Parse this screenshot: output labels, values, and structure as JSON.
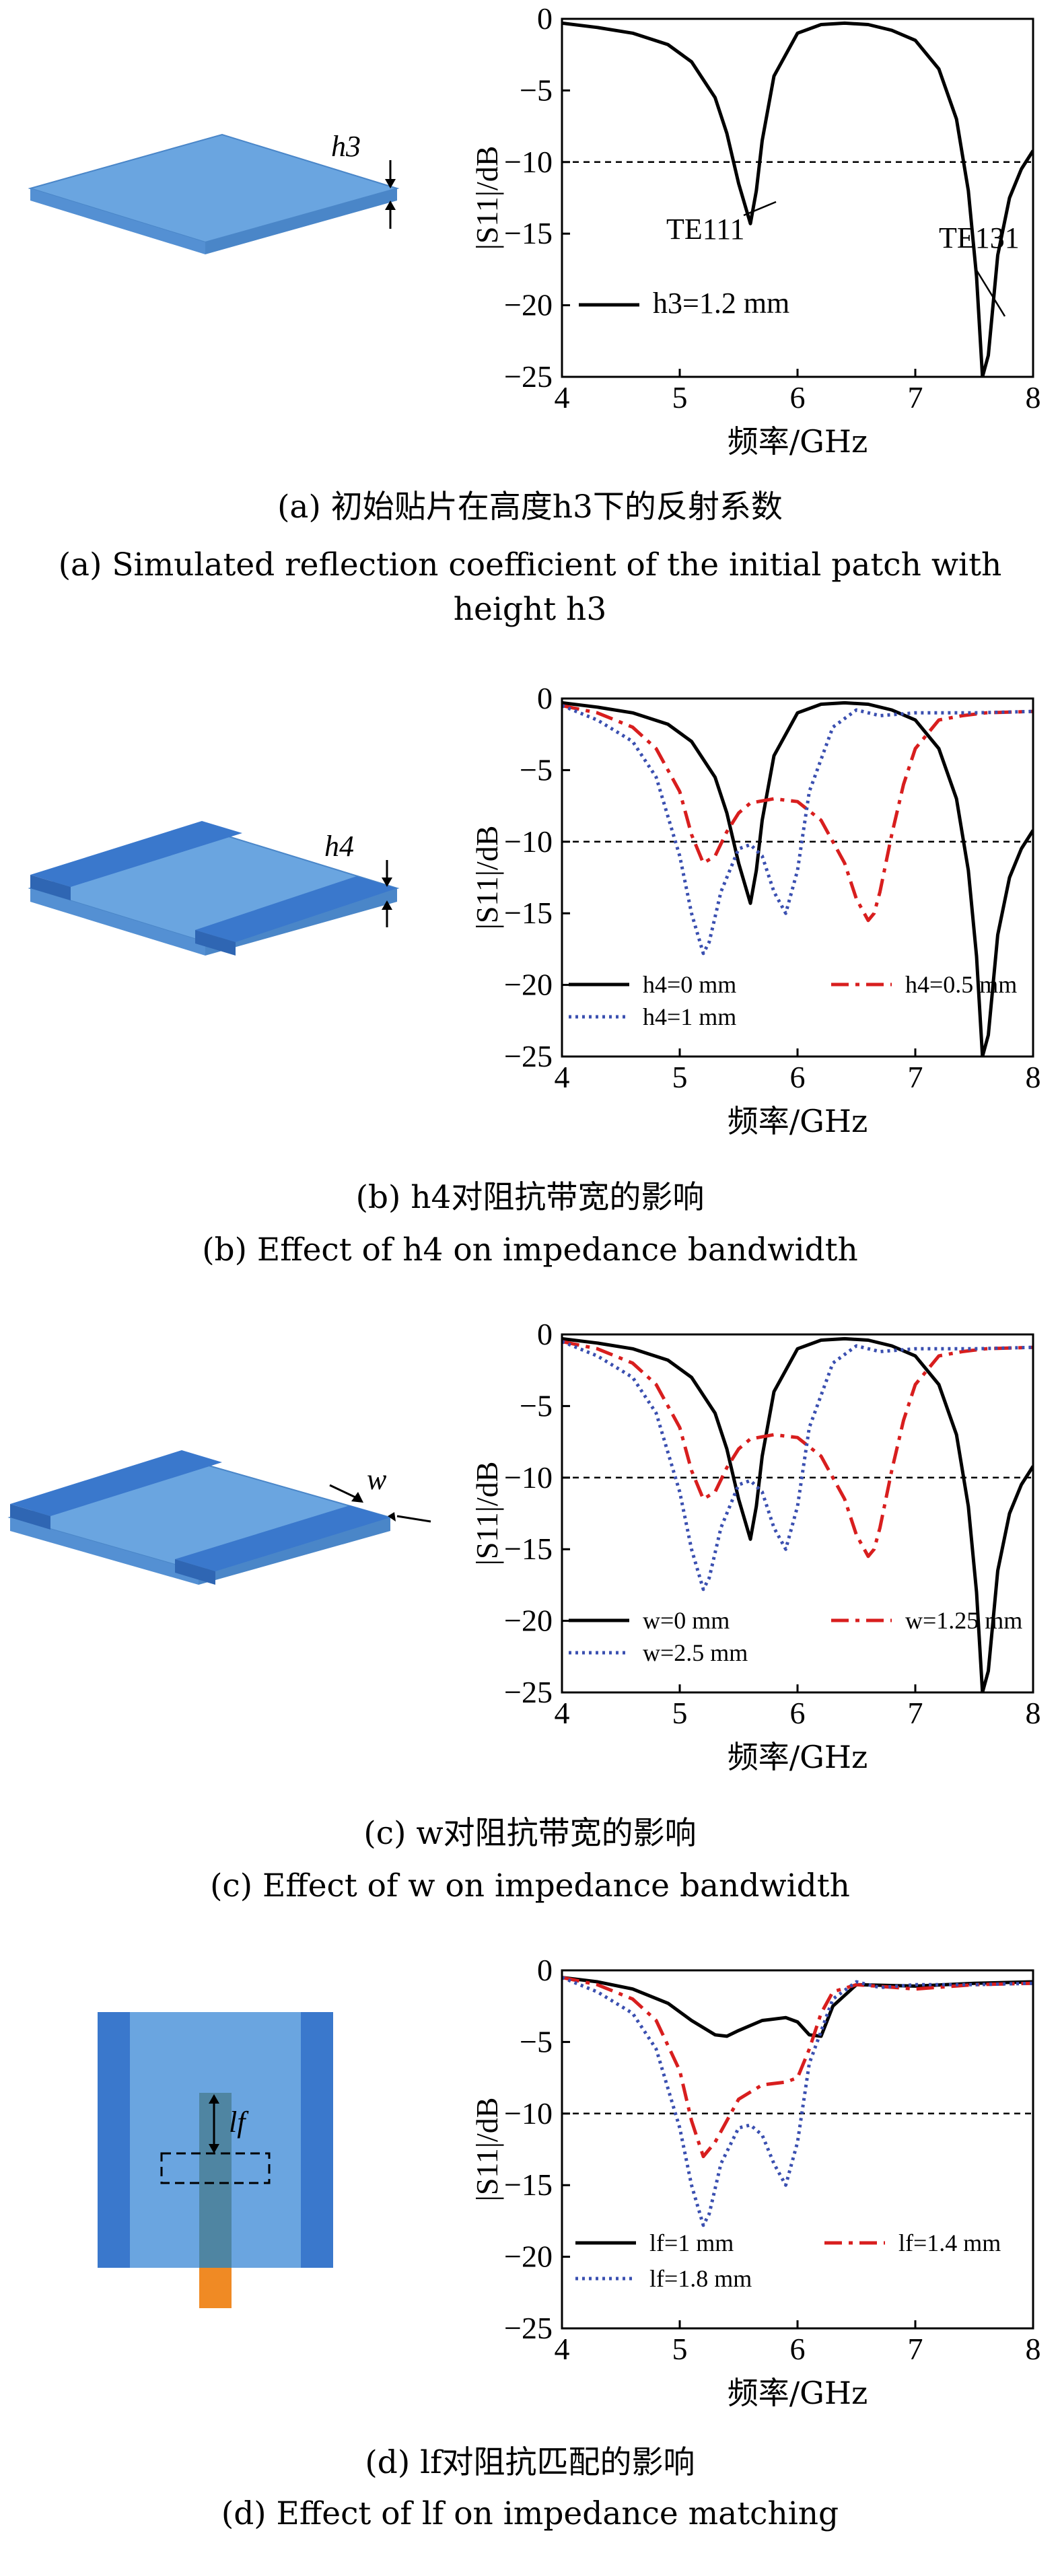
{
  "panels": [
    {
      "caption_cn": "(a) 初始贴片在高度h3下的反射系数",
      "caption_en_1": "(a) Simulated reflection coefficient of the initial patch with",
      "caption_en_2": "height h3",
      "antenna_label": "h3"
    },
    {
      "caption_cn": "(b) h4对阻抗带宽的影响",
      "caption_en_1": "(b) Effect of h4 on impedance bandwidth",
      "antenna_label": "h4"
    },
    {
      "caption_cn": "(c) w对阻抗带宽的影响",
      "caption_en_1": "(c) Effect of w on impedance bandwidth",
      "antenna_label": "w"
    },
    {
      "caption_cn": "(d) lf对阻抗匹配的影响",
      "caption_en_1": "(d) Effect of lf on impedance matching",
      "antenna_label": "lf"
    }
  ],
  "colors": {
    "solid": "#000000",
    "dashdot": "#d81e1e",
    "dotted": "#3a4fb0",
    "patch_light": "#5b9bd5",
    "patch_dark": "#3f7fcf",
    "feed": "#f08a24"
  },
  "chart_data": [
    {
      "type": "line",
      "xlabel": "频率/GHz",
      "ylabel": "|S11|/dB",
      "xlim": [
        4,
        8
      ],
      "ylim": [
        -25,
        0
      ],
      "xticks": [
        4,
        5,
        6,
        7,
        8
      ],
      "yticks": [
        0,
        -5,
        -10,
        -15,
        -20,
        -25
      ],
      "reference_line": -10,
      "annotations": [
        "TE111",
        "TE131"
      ],
      "series": [
        {
          "name": "h3=1.2 mm",
          "style": "solid",
          "x": [
            4.0,
            4.3,
            4.6,
            4.9,
            5.1,
            5.3,
            5.4,
            5.5,
            5.6,
            5.65,
            5.7,
            5.8,
            6.0,
            6.2,
            6.4,
            6.6,
            6.8,
            7.0,
            7.2,
            7.35,
            7.45,
            7.52,
            7.57,
            7.62,
            7.7,
            7.8,
            7.9,
            8.0
          ],
          "y": [
            -0.3,
            -0.6,
            -1.0,
            -1.8,
            -3.0,
            -5.5,
            -8.0,
            -11.5,
            -14.3,
            -12.0,
            -8.5,
            -4.0,
            -1.0,
            -0.4,
            -0.3,
            -0.4,
            -0.8,
            -1.5,
            -3.5,
            -7.0,
            -12.0,
            -18.0,
            -25.0,
            -23.5,
            -16.5,
            -12.5,
            -10.5,
            -9.2
          ]
        }
      ]
    },
    {
      "type": "line",
      "xlabel": "频率/GHz",
      "ylabel": "|S11|/dB",
      "xlim": [
        4,
        8
      ],
      "ylim": [
        -25,
        0
      ],
      "xticks": [
        4,
        5,
        6,
        7,
        8
      ],
      "yticks": [
        0,
        -5,
        -10,
        -15,
        -20,
        -25
      ],
      "reference_line": -10,
      "series": [
        {
          "name": "h4=0 mm",
          "style": "solid",
          "x": [
            4.0,
            4.3,
            4.6,
            4.9,
            5.1,
            5.3,
            5.4,
            5.5,
            5.6,
            5.65,
            5.7,
            5.8,
            6.0,
            6.2,
            6.4,
            6.6,
            6.8,
            7.0,
            7.2,
            7.35,
            7.45,
            7.52,
            7.57,
            7.62,
            7.7,
            7.8,
            7.9,
            8.0
          ],
          "y": [
            -0.3,
            -0.6,
            -1.0,
            -1.8,
            -3.0,
            -5.5,
            -8.0,
            -11.5,
            -14.3,
            -12.0,
            -8.5,
            -4.0,
            -1.0,
            -0.4,
            -0.3,
            -0.4,
            -0.8,
            -1.5,
            -3.5,
            -7.0,
            -12.0,
            -18.0,
            -25.0,
            -23.5,
            -16.5,
            -12.5,
            -10.5,
            -9.2
          ]
        },
        {
          "name": "h4=0.5 mm",
          "style": "dashdot",
          "x": [
            4.0,
            4.3,
            4.6,
            4.8,
            5.0,
            5.1,
            5.2,
            5.3,
            5.4,
            5.5,
            5.6,
            5.8,
            6.0,
            6.2,
            6.4,
            6.5,
            6.6,
            6.65,
            6.7,
            6.8,
            6.9,
            7.0,
            7.2,
            7.4,
            7.6,
            8.0
          ],
          "y": [
            -0.5,
            -1.0,
            -2.0,
            -3.5,
            -6.5,
            -9.5,
            -11.5,
            -11.0,
            -9.3,
            -8.0,
            -7.3,
            -7.0,
            -7.2,
            -8.5,
            -11.5,
            -14.0,
            -15.5,
            -15.0,
            -13.5,
            -9.5,
            -6.0,
            -3.5,
            -1.5,
            -1.2,
            -1.0,
            -0.9
          ]
        },
        {
          "name": "h4=1 mm",
          "style": "dotted",
          "x": [
            4.0,
            4.3,
            4.6,
            4.8,
            5.0,
            5.1,
            5.2,
            5.25,
            5.35,
            5.5,
            5.6,
            5.7,
            5.8,
            5.9,
            6.0,
            6.1,
            6.3,
            6.5,
            6.7,
            7.0,
            7.5,
            8.0
          ],
          "y": [
            -0.5,
            -1.5,
            -3.0,
            -5.5,
            -11.0,
            -15.0,
            -17.8,
            -17.0,
            -13.5,
            -10.5,
            -10.2,
            -11.0,
            -13.5,
            -15.0,
            -12.0,
            -6.5,
            -2.0,
            -0.8,
            -1.2,
            -1.0,
            -1.0,
            -0.9
          ]
        }
      ]
    },
    {
      "type": "line",
      "xlabel": "频率/GHz",
      "ylabel": "|S11|/dB",
      "xlim": [
        4,
        8
      ],
      "ylim": [
        -25,
        0
      ],
      "xticks": [
        4,
        5,
        6,
        7,
        8
      ],
      "yticks": [
        0,
        -5,
        -10,
        -15,
        -20,
        -25
      ],
      "reference_line": -10,
      "series": [
        {
          "name": "w=0 mm",
          "style": "solid",
          "x": [
            4.0,
            4.3,
            4.6,
            4.9,
            5.1,
            5.3,
            5.4,
            5.5,
            5.6,
            5.65,
            5.7,
            5.8,
            6.0,
            6.2,
            6.4,
            6.6,
            6.8,
            7.0,
            7.2,
            7.35,
            7.45,
            7.52,
            7.57,
            7.62,
            7.7,
            7.8,
            7.9,
            8.0
          ],
          "y": [
            -0.3,
            -0.6,
            -1.0,
            -1.8,
            -3.0,
            -5.5,
            -8.0,
            -11.5,
            -14.3,
            -12.0,
            -8.5,
            -4.0,
            -1.0,
            -0.4,
            -0.3,
            -0.4,
            -0.8,
            -1.5,
            -3.5,
            -7.0,
            -12.0,
            -18.0,
            -25.0,
            -23.5,
            -16.5,
            -12.5,
            -10.5,
            -9.2
          ]
        },
        {
          "name": "w=1.25 mm",
          "style": "dashdot",
          "x": [
            4.0,
            4.3,
            4.6,
            4.8,
            5.0,
            5.1,
            5.2,
            5.3,
            5.4,
            5.5,
            5.6,
            5.8,
            6.0,
            6.2,
            6.4,
            6.5,
            6.6,
            6.65,
            6.7,
            6.8,
            6.9,
            7.0,
            7.2,
            7.4,
            7.6,
            8.0
          ],
          "y": [
            -0.5,
            -1.0,
            -2.0,
            -3.5,
            -6.5,
            -9.5,
            -11.5,
            -11.0,
            -9.3,
            -8.0,
            -7.3,
            -7.0,
            -7.2,
            -8.5,
            -11.5,
            -14.0,
            -15.5,
            -15.0,
            -13.5,
            -9.5,
            -6.0,
            -3.5,
            -1.5,
            -1.2,
            -1.0,
            -0.9
          ]
        },
        {
          "name": "w=2.5 mm",
          "style": "dotted",
          "x": [
            4.0,
            4.3,
            4.6,
            4.8,
            5.0,
            5.1,
            5.2,
            5.25,
            5.35,
            5.5,
            5.6,
            5.7,
            5.8,
            5.9,
            6.0,
            6.1,
            6.3,
            6.5,
            6.7,
            7.0,
            7.5,
            8.0
          ],
          "y": [
            -0.5,
            -1.5,
            -3.0,
            -5.5,
            -11.0,
            -15.0,
            -17.8,
            -17.0,
            -13.5,
            -10.5,
            -10.2,
            -11.0,
            -13.5,
            -15.0,
            -12.0,
            -6.5,
            -2.0,
            -0.8,
            -1.2,
            -1.0,
            -1.0,
            -0.9
          ]
        }
      ]
    },
    {
      "type": "line",
      "xlabel": "频率/GHz",
      "ylabel": "|S11|/dB",
      "xlim": [
        4,
        8
      ],
      "ylim": [
        -25,
        0
      ],
      "xticks": [
        4,
        5,
        6,
        7,
        8
      ],
      "yticks": [
        0,
        -5,
        -10,
        -15,
        -20,
        -25
      ],
      "reference_line": -10,
      "series": [
        {
          "name": "lf=1 mm",
          "style": "solid",
          "x": [
            4.0,
            4.3,
            4.6,
            4.9,
            5.1,
            5.3,
            5.4,
            5.5,
            5.7,
            5.9,
            6.0,
            6.1,
            6.2,
            6.3,
            6.5,
            7.0,
            7.5,
            8.0
          ],
          "y": [
            -0.5,
            -0.8,
            -1.3,
            -2.3,
            -3.5,
            -4.5,
            -4.6,
            -4.2,
            -3.5,
            -3.3,
            -3.6,
            -4.5,
            -4.6,
            -2.5,
            -1.0,
            -1.1,
            -0.9,
            -0.8
          ]
        },
        {
          "name": "lf=1.4 mm",
          "style": "dashdot",
          "x": [
            4.0,
            4.3,
            4.6,
            4.8,
            5.0,
            5.1,
            5.2,
            5.3,
            5.4,
            5.5,
            5.7,
            5.9,
            6.0,
            6.1,
            6.2,
            6.3,
            6.5,
            7.0,
            7.5,
            8.0
          ],
          "y": [
            -0.5,
            -1.0,
            -2.0,
            -3.5,
            -7.0,
            -10.5,
            -13.0,
            -12.0,
            -10.5,
            -9.0,
            -8.0,
            -7.8,
            -7.5,
            -5.5,
            -3.0,
            -1.5,
            -1.0,
            -1.3,
            -1.0,
            -0.9
          ]
        },
        {
          "name": "lf=1.8 mm",
          "style": "dotted",
          "x": [
            4.0,
            4.3,
            4.6,
            4.8,
            5.0,
            5.1,
            5.2,
            5.25,
            5.35,
            5.5,
            5.6,
            5.7,
            5.8,
            5.9,
            6.0,
            6.1,
            6.3,
            6.5,
            6.7,
            7.0,
            7.5,
            8.0
          ],
          "y": [
            -0.5,
            -1.5,
            -3.0,
            -5.5,
            -11.0,
            -15.0,
            -17.8,
            -17.0,
            -13.5,
            -11.0,
            -10.8,
            -11.5,
            -13.5,
            -15.0,
            -12.0,
            -6.5,
            -2.0,
            -0.8,
            -1.2,
            -1.0,
            -1.0,
            -0.9
          ]
        }
      ]
    }
  ]
}
